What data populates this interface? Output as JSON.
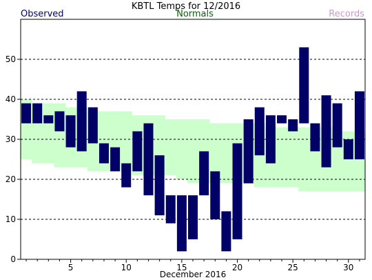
{
  "chart_data": {
    "type": "bar",
    "title": "KBTL Temps for  12/2016",
    "xlabel": "December 2016",
    "ylabel": "",
    "legend": {
      "observed": "Observed",
      "normals": "Normals",
      "records": "Records",
      "placement": "top"
    },
    "grid": "horizontal-dashed",
    "ylim": [
      0,
      60
    ],
    "yticks": [
      0,
      10,
      20,
      30,
      40,
      50
    ],
    "xlim": [
      0.5,
      31.5
    ],
    "xticks": [
      5,
      10,
      15,
      20,
      25,
      30
    ],
    "colors": {
      "observed": "#000066",
      "normals": "#ccffcc",
      "observed_label": "#000066",
      "normals_label": "#006600",
      "records_label": "#cc99cc",
      "grid": "#000000"
    },
    "days": [
      1,
      2,
      3,
      4,
      5,
      6,
      7,
      8,
      9,
      10,
      11,
      12,
      13,
      14,
      15,
      16,
      17,
      18,
      19,
      20,
      21,
      22,
      23,
      24,
      25,
      26,
      27,
      28,
      29,
      30,
      31
    ],
    "observed_high": [
      39,
      39,
      36,
      37,
      36,
      42,
      38,
      29,
      28,
      24,
      32,
      34,
      26,
      16,
      16,
      16,
      27,
      22,
      12,
      29,
      35,
      38,
      36,
      36,
      35,
      53,
      34,
      41,
      39,
      30,
      42
    ],
    "observed_low": [
      34,
      34,
      34,
      32,
      28,
      27,
      29,
      24,
      22,
      18,
      22,
      16,
      11,
      9,
      2,
      5,
      16,
      10,
      2,
      5,
      19,
      26,
      24,
      34,
      32,
      34,
      27,
      23,
      28,
      25,
      25
    ],
    "normal_high": [
      40,
      39,
      39,
      39,
      38,
      38,
      37,
      37,
      37,
      37,
      36,
      36,
      36,
      35,
      35,
      35,
      35,
      34,
      34,
      34,
      34,
      34,
      33,
      33,
      33,
      33,
      33,
      33,
      32,
      32,
      32
    ],
    "normal_low": [
      25,
      24,
      24,
      23,
      23,
      23,
      22,
      22,
      22,
      22,
      21,
      21,
      21,
      21,
      20,
      19,
      19,
      19,
      19,
      19,
      19,
      18,
      18,
      18,
      18,
      17,
      17,
      17,
      17,
      17,
      17
    ]
  }
}
